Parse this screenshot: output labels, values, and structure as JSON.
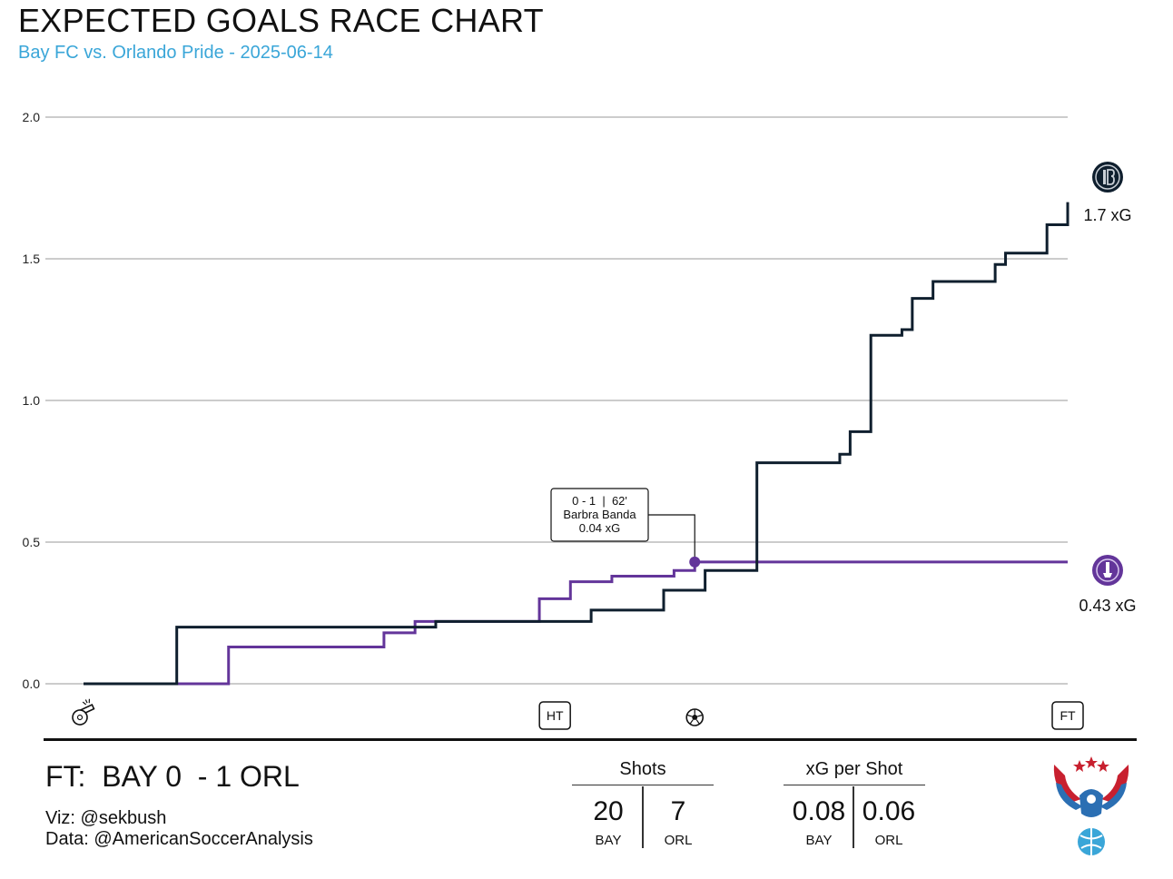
{
  "header": {
    "title": "EXPECTED GOALS RACE CHART",
    "subtitle": "Bay FC vs. Orlando Pride - 2025-06-14"
  },
  "colors": {
    "bay": "#0f1f2e",
    "orl": "#63359a",
    "grid": "#cccccc",
    "subtitle": "#3aa6d8"
  },
  "chart_data": {
    "type": "line",
    "step": true,
    "title": "EXPECTED GOALS RACE CHART",
    "subtitle": "Bay FC vs. Orlando Pride - 2025-06-14",
    "ylim": [
      0,
      2.0
    ],
    "xlim": [
      0,
      95
    ],
    "yticks": [
      "0.0",
      "0.5",
      "1.0",
      "1.5",
      "2.0"
    ],
    "grid": true,
    "series": [
      {
        "team": "BAY",
        "color": "#0f1f2e",
        "end_label": "1.7 xG",
        "steps": [
          [
            0,
            0
          ],
          [
            9,
            0.2
          ],
          [
            34,
            0.22
          ],
          [
            49,
            0.26
          ],
          [
            56,
            0.33
          ],
          [
            60,
            0.4
          ],
          [
            65,
            0.78
          ],
          [
            73,
            0.81
          ],
          [
            74,
            0.89
          ],
          [
            76,
            1.23
          ],
          [
            79,
            1.25
          ],
          [
            80,
            1.36
          ],
          [
            82,
            1.42
          ],
          [
            88,
            1.48
          ],
          [
            89,
            1.52
          ],
          [
            93,
            1.62
          ],
          [
            95,
            1.7
          ]
        ]
      },
      {
        "team": "ORL",
        "color": "#63359a",
        "end_label": "0.43 xG",
        "steps": [
          [
            0,
            0
          ],
          [
            14,
            0.13
          ],
          [
            29,
            0.18
          ],
          [
            32,
            0.22
          ],
          [
            44,
            0.3
          ],
          [
            47,
            0.36
          ],
          [
            51,
            0.38
          ],
          [
            57,
            0.4
          ],
          [
            59,
            0.43
          ],
          [
            95,
            0.43
          ]
        ]
      }
    ],
    "goal_annotation": {
      "lines": [
        "0 - 1  |  62'",
        "Barbra Banda",
        "0.04 xG"
      ],
      "x": 59,
      "y": 0.43
    },
    "x_markers": [
      {
        "icon": "whistle-icon",
        "x": 0
      },
      {
        "label": "HT",
        "x": 45.5
      },
      {
        "icon": "soccer-ball-icon",
        "x": 59
      },
      {
        "label": "FT",
        "x": 95
      }
    ]
  },
  "footer": {
    "final_score": "FT:  BAY 0  - 1 ORL",
    "viz_credit": "Viz: @sekbush",
    "data_credit": "Data: @AmericanSoccerAnalysis",
    "shots": {
      "title": "Shots",
      "bay_value": "20",
      "orl_value": "7",
      "bay_label": "BAY",
      "orl_label": "ORL"
    },
    "xg_per_shot": {
      "title": "xG per Shot",
      "bay_value": "0.08",
      "orl_value": "0.06",
      "bay_label": "BAY",
      "orl_label": "ORL"
    }
  }
}
